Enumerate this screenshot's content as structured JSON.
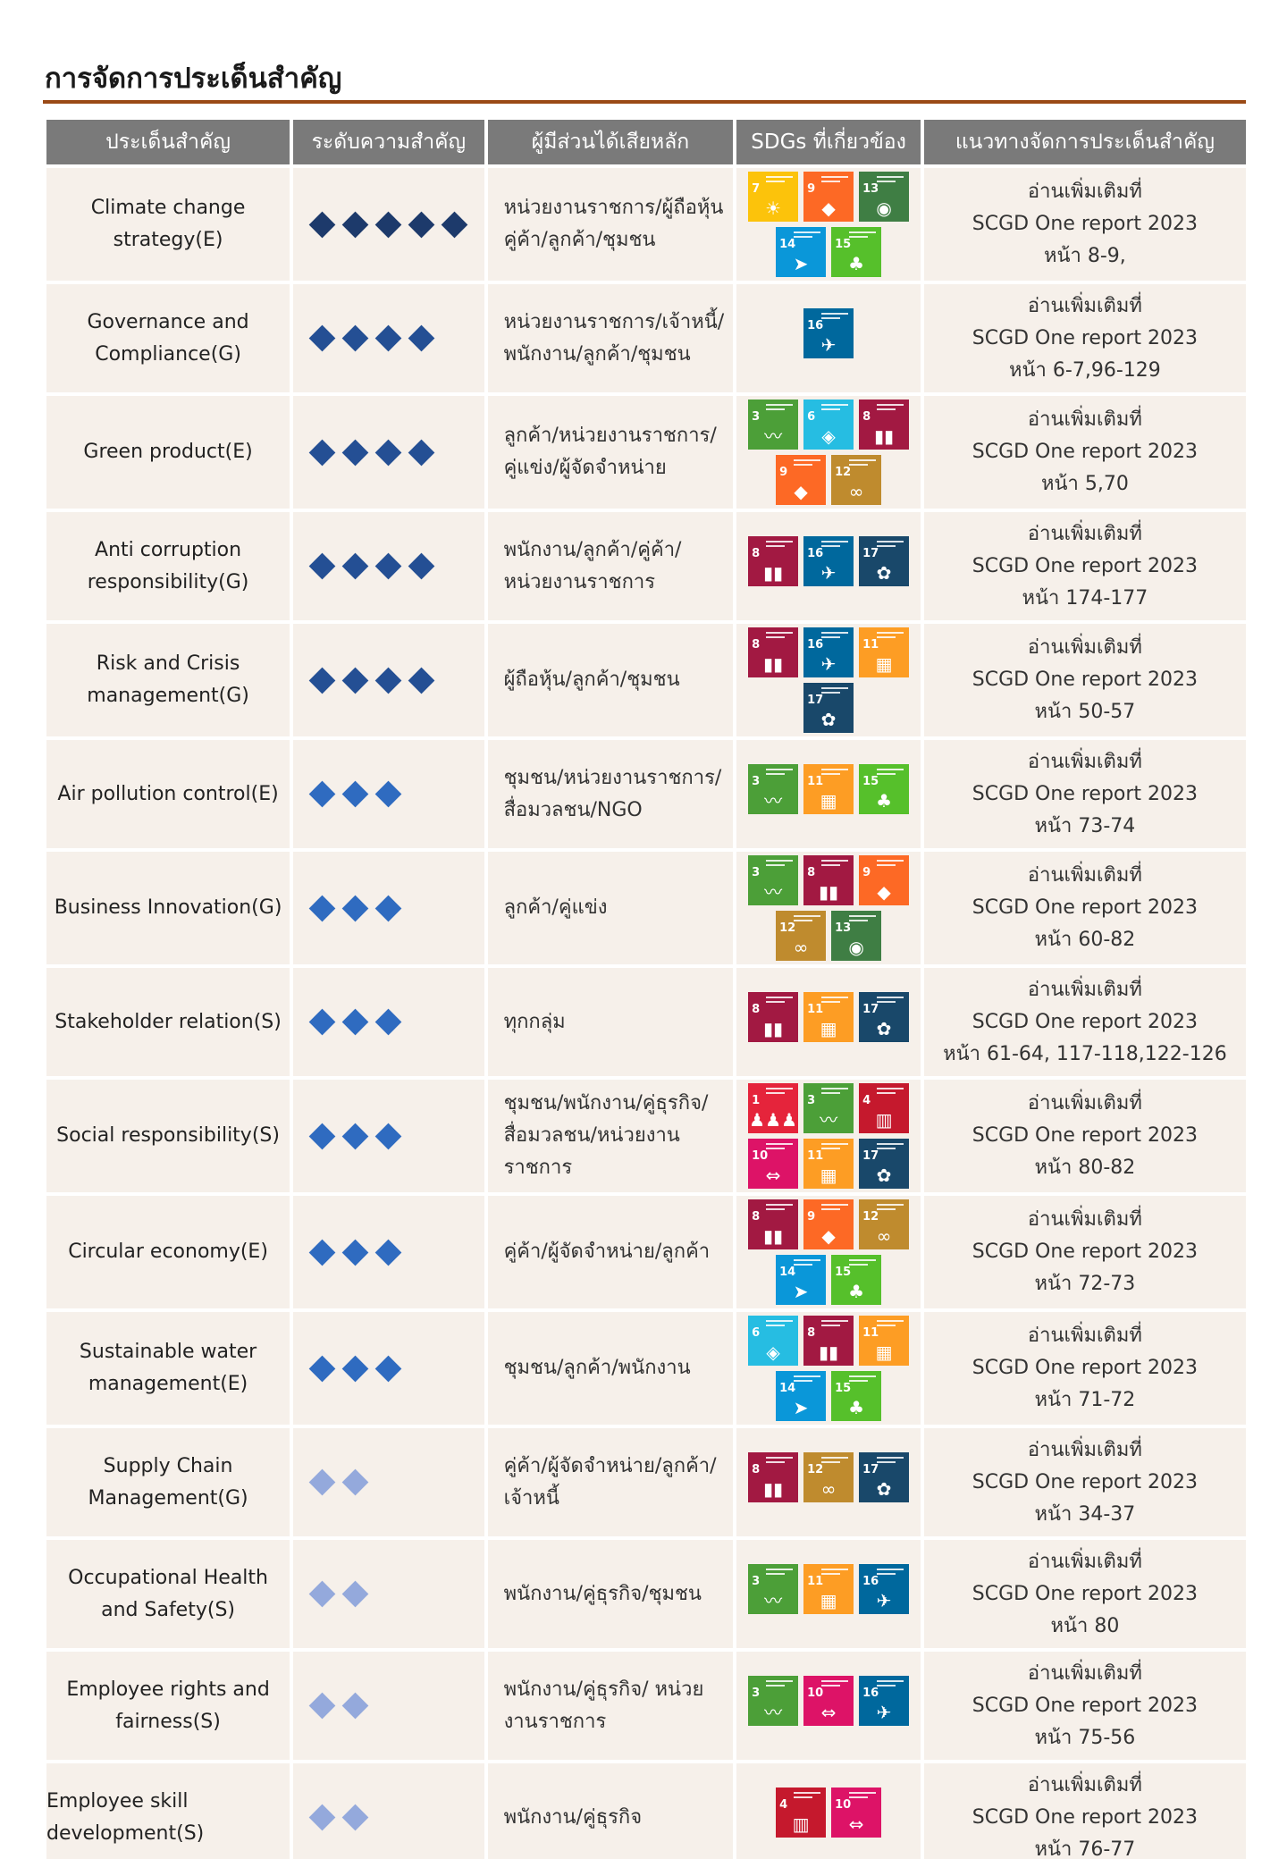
{
  "title": "การจัดการประเด็นสำคัญ",
  "colors": {
    "rule": "#9a4a16",
    "header_bg": "#7a7a7a",
    "cell_bg": "#f6f0ea"
  },
  "headers": [
    "ประเด็นสำคัญ",
    "ระดับความสำคัญ",
    "ผู้มีส่วนได้เสียหลัก",
    "SDGs ที่เกี่ยวข้อง",
    "แนวทางจัดการประเด็นสำคัญ"
  ],
  "importance_colors": {
    "5": "#1d3a6b",
    "4": "#244f94",
    "3": "#2f6bc0",
    "2": "#94a9dc"
  },
  "sdg_colors": {
    "1": "#e5243b",
    "3": "#4c9f38",
    "4": "#c5192d",
    "6": "#26bde2",
    "7": "#fcc30b",
    "8": "#a21942",
    "9": "#fd6925",
    "10": "#dd1367",
    "11": "#fd9d24",
    "12": "#bf8b2e",
    "13": "#3f7e44",
    "14": "#0a97d9",
    "15": "#56c02b",
    "16": "#00689d",
    "17": "#19486a"
  },
  "sdg_glyphs": {
    "1": "♟♟♟",
    "3": "〰",
    "4": "▥",
    "6": "◈",
    "7": "☀",
    "8": "▮▮",
    "9": "◆",
    "10": "⇔",
    "11": "▦",
    "12": "∞",
    "13": "◉",
    "14": "➤",
    "15": "♣",
    "16": "✈",
    "17": "✿"
  },
  "guide_prefix": "อ่านเพิ่มเติมที่",
  "guide_report": "SCGD One report 2023",
  "rows": [
    {
      "issue": "Climate change strategy(E)",
      "level": 5,
      "stakeholders": "หน่วยงานราชการ/ผู้ถือหุ้น คู่ค้า/ลูกค้า/ชุมชน",
      "sdgs": [
        7,
        9,
        13,
        14,
        15
      ],
      "pages": "หน้า 8-9,"
    },
    {
      "issue": "Governance and Compliance(G)",
      "level": 4,
      "stakeholders": "หน่วยงานราชการ/เจ้าหนี้/ พนักงาน/ลูกค้า/ชุมชน",
      "sdgs": [
        16
      ],
      "pages": "หน้า 6-7,96-129"
    },
    {
      "issue": "Green product(E)",
      "level": 4,
      "stakeholders": "ลูกค้า/หน่วยงานราชการ/ คู่แข่ง/ผู้จัดจำหน่าย",
      "sdgs": [
        3,
        6,
        8,
        9,
        12
      ],
      "pages": "หน้า 5,70"
    },
    {
      "issue": "Anti corruption responsibility(G)",
      "level": 4,
      "stakeholders": "พนักงาน/ลูกค้า/คู่ค้า/ หน่วยงานราชการ",
      "sdgs": [
        8,
        16,
        17
      ],
      "pages": "หน้า 174-177"
    },
    {
      "issue": "Risk and Crisis management(G)",
      "level": 4,
      "stakeholders": "ผู้ถือหุ้น/ลูกค้า/ชุมชน",
      "sdgs": [
        8,
        16,
        11,
        17
      ],
      "pages": "หน้า 50-57"
    },
    {
      "issue": "Air pollution control(E)",
      "level": 3,
      "stakeholders": "ชุมชน/หน่วยงานราชการ/ สื่อมวลชน/NGO",
      "sdgs": [
        3,
        11,
        15
      ],
      "pages": "หน้า 73-74"
    },
    {
      "issue": "Business Innovation(G)",
      "level": 3,
      "stakeholders": "ลูกค้า/คู่แข่ง",
      "sdgs": [
        3,
        8,
        9,
        12,
        13
      ],
      "pages": "หน้า 60-82"
    },
    {
      "issue": "Stakeholder relation(S)",
      "level": 3,
      "stakeholders": "ทุกกลุ่ม",
      "sdgs": [
        8,
        11,
        17
      ],
      "pages": "หน้า 61-64, 117-118,122-126"
    },
    {
      "issue": "Social responsibility(S)",
      "level": 3,
      "stakeholders": "ชุมชน/พนักงาน/คู่ธุรกิจ/ สื่อมวลชน/หน่วยงาน ราชการ",
      "sdgs": [
        1,
        3,
        4,
        10,
        11,
        17
      ],
      "pages": "หน้า 80-82"
    },
    {
      "issue": "Circular economy(E)",
      "level": 3,
      "stakeholders": "คู่ค้า/ผู้จัดจำหน่าย/ลูกค้า",
      "sdgs": [
        8,
        9,
        12,
        14,
        15
      ],
      "pages": "หน้า 72-73"
    },
    {
      "issue": "Sustainable water management(E)",
      "level": 3,
      "stakeholders": "ชุมชน/ลูกค้า/พนักงาน",
      "sdgs": [
        6,
        8,
        11,
        14,
        15
      ],
      "pages": "หน้า 71-72"
    },
    {
      "issue": "Supply Chain Management(G)",
      "level": 2,
      "stakeholders": "คู่ค้า/ผู้จัดจำหน่าย/ลูกค้า/ เจ้าหนี้",
      "sdgs": [
        8,
        12,
        17
      ],
      "pages": "หน้า 34-37"
    },
    {
      "issue": "Occupational Health and Safety(S)",
      "level": 2,
      "stakeholders": "พนักงาน/คู่ธุรกิจ/ชุมชน",
      "sdgs": [
        3,
        11,
        16
      ],
      "pages": "หน้า 80"
    },
    {
      "issue": "Employee rights and fairness(S)",
      "level": 2,
      "stakeholders": "พนักงาน/คู่ธุรกิจ/ หน่วยงานราชการ",
      "sdgs": [
        3,
        10,
        16
      ],
      "pages": "หน้า 75-56"
    },
    {
      "issue": "Employee skill development(S)",
      "level": 2,
      "stakeholders": "พนักงาน/คู่ธุรกิจ",
      "sdgs": [
        4,
        10
      ],
      "pages": "หน้า 76-77"
    }
  ]
}
